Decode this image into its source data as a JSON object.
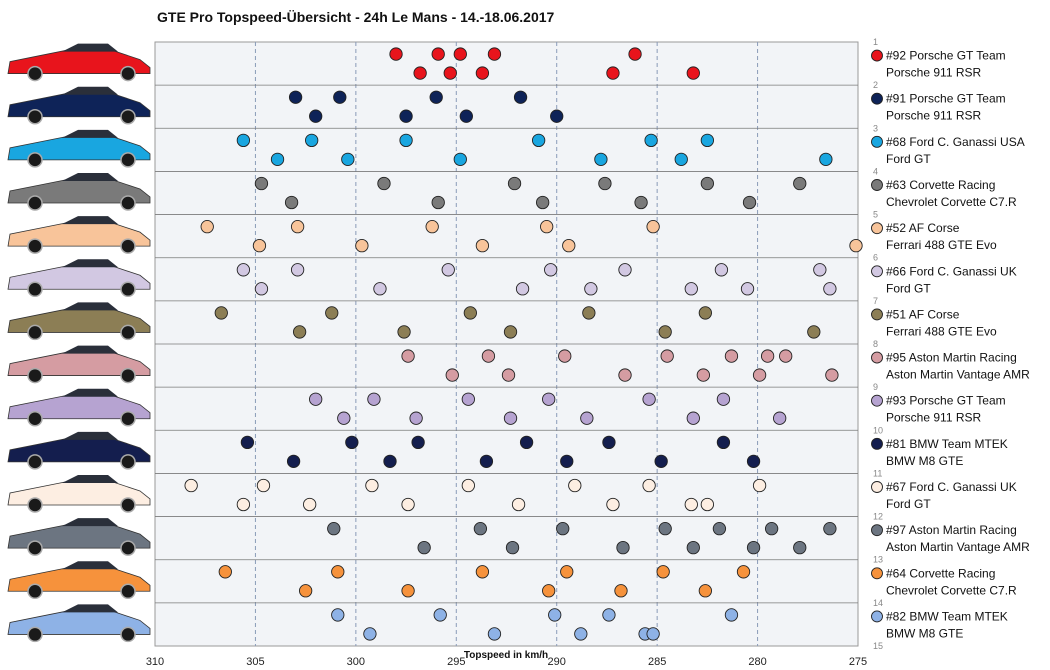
{
  "chart_data": {
    "type": "scatter",
    "title": "GTE Pro Topspeed-Übersicht  - 24h Le Mans  - 14.-18.06.2017",
    "xlabel": "Topspeed in km/h",
    "ylabel": "",
    "xlim": [
      310,
      275
    ],
    "x_reversed": true,
    "ylim": [
      1,
      15
    ],
    "x_ticks": [
      "310",
      "305",
      "300",
      "295",
      "290",
      "285",
      "280",
      "275"
    ],
    "y_ticks": [
      "1",
      "2",
      "3",
      "4",
      "5",
      "6",
      "7",
      "8",
      "9",
      "10",
      "11",
      "12",
      "13",
      "14",
      "15"
    ],
    "grid": "vertical dashed",
    "legend_position": "right",
    "series": [
      {
        "name": "#92 Porsche GT Team",
        "car": "Porsche 911 RSR",
        "color": "#e8141c",
        "values": [
          298,
          296.8,
          295.9,
          295.3,
          294.8,
          293.7,
          293.1,
          287.2,
          286.1,
          283.2
        ]
      },
      {
        "name": "#91 Porsche GT Team",
        "car": "Porsche 911 RSR",
        "color": "#0e2358",
        "values": [
          303,
          302,
          300.8,
          297.5,
          296,
          294.5,
          291.8,
          290
        ]
      },
      {
        "name": "#68 Ford C. Ganassi USA",
        "car": "Ford GT",
        "color": "#19a6e0",
        "values": [
          305.6,
          303.9,
          302.2,
          300.4,
          297.5,
          294.8,
          290.9,
          287.8,
          285.3,
          283.8,
          282.5,
          276.6
        ]
      },
      {
        "name": "#63 Corvette Racing",
        "car": "Chevrolet Corvette C7.R",
        "color": "#7a7a7a",
        "values": [
          304.7,
          303.2,
          298.6,
          295.9,
          292.1,
          290.7,
          287.6,
          285.8,
          282.5,
          280.4,
          277.9
        ]
      },
      {
        "name": "#52 AF Corse",
        "car": "Ferrari 488 GTE Evo",
        "color": "#f8c49a",
        "values": [
          307.4,
          304.8,
          302.9,
          299.7,
          296.2,
          293.7,
          290.5,
          289.4,
          285.2,
          275.1
        ]
      },
      {
        "name": "#66 Ford C. Ganassi UK",
        "car": "Ford GT",
        "color": "#d2c8e2",
        "values": [
          305.6,
          304.7,
          302.9,
          298.8,
          295.4,
          291.7,
          290.3,
          288.3,
          286.6,
          283.3,
          281.8,
          280.5,
          276.9,
          276.4
        ]
      },
      {
        "name": "#51 AF Corse",
        "car": "Ferrari 488 GTE Evo",
        "color": "#8c7e55",
        "values": [
          306.7,
          302.8,
          301.2,
          297.6,
          294.3,
          292.3,
          288.4,
          284.6,
          282.6,
          277.2
        ]
      },
      {
        "name": "#95 Aston Martin Racing",
        "car": "Aston Martin Vantage AMR",
        "color": "#d59ca2",
        "values": [
          297.4,
          295.2,
          293.4,
          292.4,
          289.6,
          286.6,
          284.5,
          282.7,
          281.3,
          279.9,
          279.5,
          276.3,
          278.6
        ]
      },
      {
        "name": "#93 Porsche GT Team",
        "car": "Porsche 911 RSR",
        "color": "#b6a3d1",
        "values": [
          302,
          300.6,
          299.1,
          297,
          294.4,
          292.3,
          290.4,
          288.5,
          285.4,
          283.2,
          281.7,
          278.9
        ]
      },
      {
        "name": "#81 BMW Team MTEK",
        "car": "BMW M8 GTE",
        "color": "#141e4e",
        "values": [
          305.4,
          303.1,
          300.2,
          298.3,
          296.9,
          293.5,
          291.5,
          289.5,
          287.4,
          284.8,
          281.7,
          280.2
        ]
      },
      {
        "name": "#67 Ford C. Ganassi UK",
        "car": "Ford GT",
        "color": "#fdeee2",
        "values": [
          308.2,
          305.6,
          304.6,
          302.3,
          299.2,
          297.4,
          294.4,
          291.9,
          289.1,
          287.2,
          285.4,
          283.3,
          279.9,
          282.5
        ]
      },
      {
        "name": "#97 Aston Martin Racing",
        "car": "Aston Martin Vantage AMR",
        "color": "#6c7581",
        "values": [
          301.1,
          296.6,
          293.8,
          292.2,
          289.7,
          286.7,
          284.6,
          283.2,
          281.9,
          280.2,
          279.3,
          277.9,
          276.4
        ]
      },
      {
        "name": "#64 Corvette Racing",
        "car": "Chevrolet Corvette C7.R",
        "color": "#f6923c",
        "values": [
          306.5,
          302.5,
          300.9,
          297.4,
          293.7,
          290.4,
          289.5,
          286.8,
          284.7,
          282.6,
          280.7
        ]
      },
      {
        "name": "#82 BMW Team MTEK",
        "car": "BMW M8 GTE",
        "color": "#8eb2e6",
        "values": [
          300.9,
          299.3,
          295.8,
          293.1,
          290.1,
          288.8,
          287.4,
          285.6,
          281.3,
          285.2
        ]
      }
    ]
  }
}
